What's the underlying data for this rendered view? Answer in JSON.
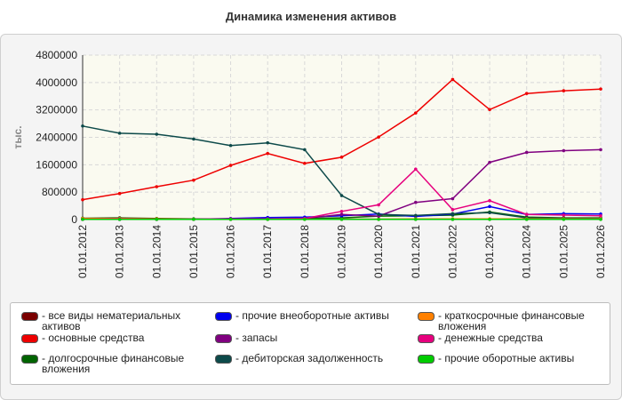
{
  "chart_data": {
    "type": "line",
    "title": "Динамика изменения активов",
    "ylabel": "тыс.",
    "xlabel": "",
    "ylim": [
      0,
      4800000
    ],
    "yticks": [
      "4800000",
      "4000000",
      "3200000",
      "2400000",
      "1600000",
      "800000",
      "0"
    ],
    "ytick_values": [
      4800000,
      4000000,
      3200000,
      2400000,
      1600000,
      800000,
      0
    ],
    "categories": [
      "01.01.2012",
      "01.01.2013",
      "01.01.2014",
      "01.01.2015",
      "01.01.2016",
      "01.01.2017",
      "01.01.2018",
      "01.01.2019",
      "01.01.2020",
      "01.01.2021",
      "01.01.2022",
      "01.01.2023",
      "01.01.2024",
      "01.01.2025",
      "01.01.2026"
    ],
    "grid": true,
    "legend_position": "bottom",
    "series": [
      {
        "name": "- все виды нематериальных активов",
        "color": "#7a0000",
        "values": [
          10000,
          10000,
          10000,
          10000,
          10000,
          10000,
          10000,
          10000,
          10000,
          10000,
          10000,
          10000,
          10000,
          10000,
          10000
        ]
      },
      {
        "name": "- основные средства",
        "color": "#ee0000",
        "values": [
          580000,
          760000,
          960000,
          1150000,
          1580000,
          1930000,
          1640000,
          1820000,
          2410000,
          3110000,
          4090000,
          3210000,
          3680000,
          3760000,
          3810000
        ]
      },
      {
        "name": "- долгосрочные финансовые вложения",
        "color": "#006400",
        "values": [
          40000,
          50000,
          30000,
          20000,
          20000,
          20000,
          30000,
          50000,
          100000,
          110000,
          130000,
          220000,
          70000,
          50000,
          50000
        ]
      },
      {
        "name": "- прочие внеоборотные активы",
        "color": "#0000ee",
        "values": [
          5000,
          5000,
          5000,
          10000,
          30000,
          60000,
          70000,
          110000,
          160000,
          90000,
          160000,
          380000,
          150000,
          170000,
          160000
        ]
      },
      {
        "name": "- запасы",
        "color": "#800080",
        "values": [
          5000,
          5000,
          5000,
          5000,
          5000,
          10000,
          30000,
          150000,
          100000,
          500000,
          610000,
          1670000,
          1960000,
          2010000,
          2040000
        ]
      },
      {
        "name": "- дебиторская задолженность",
        "color": "#0d4a4a",
        "values": [
          2730000,
          2520000,
          2490000,
          2350000,
          2160000,
          2240000,
          2040000,
          700000,
          150000,
          120000,
          170000,
          200000,
          50000,
          40000,
          30000
        ]
      },
      {
        "name": "- краткосрочные финансовые вложения",
        "color": "#ff8000",
        "values": [
          30000,
          30000,
          20000,
          10000,
          10000,
          10000,
          10000,
          10000,
          10000,
          20000,
          20000,
          20000,
          20000,
          20000,
          20000
        ]
      },
      {
        "name": "- денежные средства",
        "color": "#e6007e",
        "values": [
          10000,
          20000,
          10000,
          10000,
          20000,
          20000,
          30000,
          240000,
          430000,
          1470000,
          290000,
          550000,
          150000,
          130000,
          110000
        ]
      },
      {
        "name": "- прочие оборотные активы",
        "color": "#00cc00",
        "values": [
          5000,
          5000,
          5000,
          5000,
          5000,
          5000,
          5000,
          5000,
          5000,
          5000,
          5000,
          5000,
          5000,
          5000,
          5000
        ]
      }
    ]
  }
}
